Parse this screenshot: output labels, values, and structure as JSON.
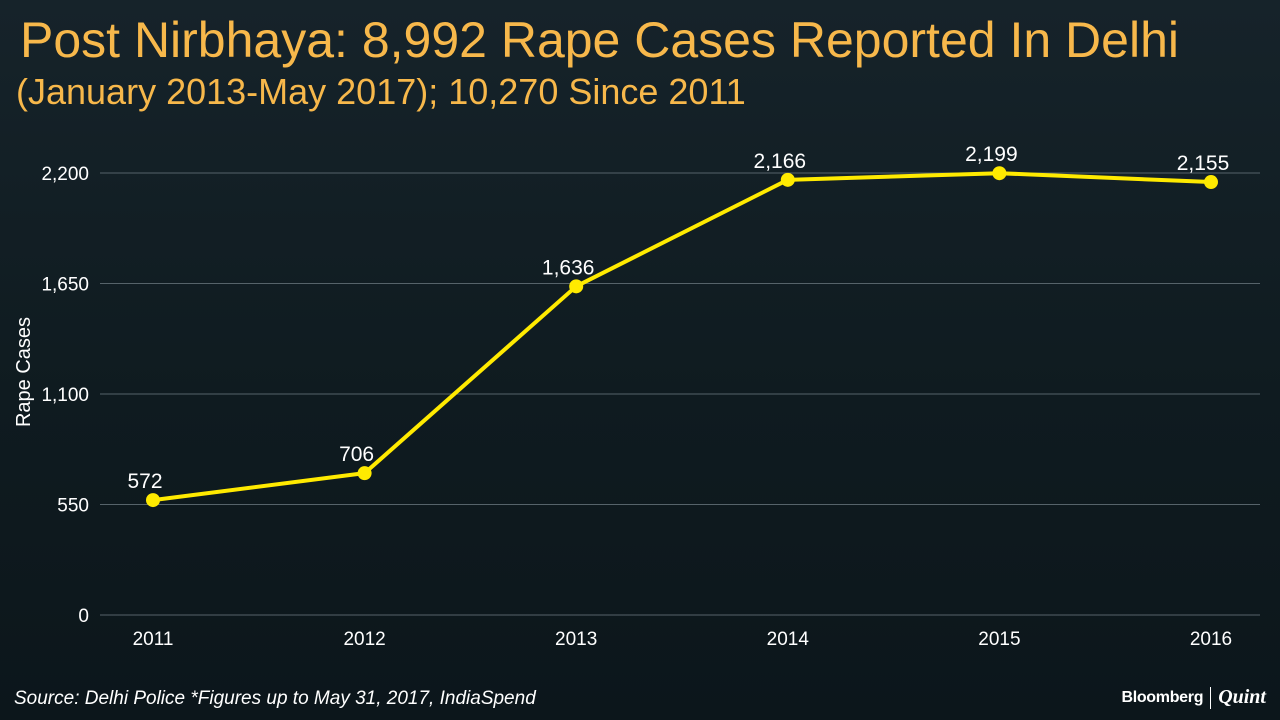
{
  "header": {
    "title": "Post Nirbhaya: 8,992 Rape Cases Reported In Delhi",
    "subtitle": "(January 2013-May 2017); 10,270 Since 2011"
  },
  "footer": {
    "source": "Source: Delhi Police *Figures up to May 31, 2017, IndiaSpend",
    "logo_left": "Bloomberg",
    "logo_right": "Quint"
  },
  "chart_data": {
    "type": "line",
    "title": "Post Nirbhaya: 8,992 Rape Cases Reported In Delhi",
    "subtitle": "(January 2013-May 2017); 10,270 Since 2011",
    "xlabel": "",
    "ylabel": "Rape Cases",
    "categories": [
      "2011",
      "2012",
      "2013",
      "2014",
      "2015",
      "2016"
    ],
    "series": [
      {
        "values": [
          572,
          706,
          1636,
          2166,
          2199,
          2155
        ]
      }
    ],
    "data_labels": [
      "572",
      "706",
      "1,636",
      "2,166",
      "2,199",
      "2,155"
    ],
    "ylim": [
      0,
      2200
    ],
    "yticks": [
      0,
      550,
      1100,
      1650,
      2200
    ],
    "ytick_labels": [
      "0",
      "550",
      "1,100",
      "1,650",
      "2,200"
    ],
    "grid": true,
    "legend": "none",
    "colors": {
      "line": "#ffea00",
      "title": "#f7b84b",
      "text": "#ffffff",
      "grid": "#56636a"
    }
  }
}
